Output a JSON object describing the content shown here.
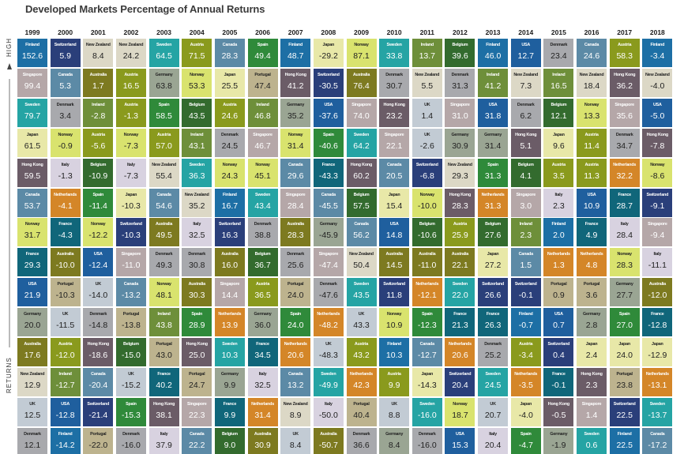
{
  "chart_data": {
    "type": "table",
    "title": "Developed Markets Percentage of Annual Returns",
    "side_labels": {
      "top": "HIGH",
      "bottom": "RETURNS"
    },
    "years": [
      "1999",
      "2000",
      "2001",
      "2002",
      "2003",
      "2004",
      "2005",
      "2006",
      "2007",
      "2008",
      "2009",
      "2010",
      "2011",
      "2012",
      "2013",
      "2014",
      "2015",
      "2016",
      "2017",
      "2018"
    ],
    "colors": {
      "Finland": "#1d6fa5",
      "Switzerland": "#2a3f7a",
      "New Zealand": "#dcd8c6",
      "Sweden": "#25a4a4",
      "Austria": "#8a9a1d",
      "Canada": "#5c8aa6",
      "Spain": "#2f8a3a",
      "Japan": "#e8e8a8",
      "Norway": "#d9e36e",
      "Ireland": "#6e8f3a",
      "Belgium": "#336b2e",
      "USA": "#1f5f9e",
      "Singapore": "#b5a7a8",
      "Germany": "#9aa593",
      "Portugal": "#bdb38e",
      "Hong Kong": "#6b5c67",
      "Australia": "#7d7a20",
      "Denmark": "#a8a9ad",
      "Italy": "#d8d2e0",
      "Netherlands": "#d48628",
      "France": "#10667a",
      "UK": "#c2cbd4"
    },
    "light_text_countries": [
      "Finland",
      "Switzerland",
      "Sweden",
      "Austria",
      "Canada",
      "Spain",
      "Ireland",
      "Belgium",
      "USA",
      "Singapore",
      "Hong Kong",
      "Australia",
      "Netherlands",
      "France"
    ],
    "columns": [
      [
        [
          "Finland",
          "152.6"
        ],
        [
          "Singapore",
          "99.4"
        ],
        [
          "Sweden",
          "79.7"
        ],
        [
          "Japan",
          "61.5"
        ],
        [
          "Hong Kong",
          "59.5"
        ],
        [
          "Canada",
          "53.7"
        ],
        [
          "Norway",
          "31.7"
        ],
        [
          "France",
          "29.3"
        ],
        [
          "USA",
          "21.9"
        ],
        [
          "Germany",
          "20.0"
        ],
        [
          "Australia",
          "17.6"
        ],
        [
          "New Zealand",
          "12.9"
        ],
        [
          "UK",
          "12.5"
        ],
        [
          "Denmark",
          "12.1"
        ]
      ],
      [
        [
          "Switzerland",
          "5.9"
        ],
        [
          "Canada",
          "5.3"
        ],
        [
          "Denmark",
          "3.4"
        ],
        [
          "Norway",
          "-0.9"
        ],
        [
          "Italy",
          "-1.3"
        ],
        [
          "Netherlands",
          "-4.1"
        ],
        [
          "France",
          "-4.3"
        ],
        [
          "Australia",
          "-10.0"
        ],
        [
          "Portugal",
          "-10.3"
        ],
        [
          "UK",
          "-11.5"
        ],
        [
          "Austria",
          "-12.0"
        ],
        [
          "Ireland",
          "-12.7"
        ],
        [
          "USA",
          "-12.8"
        ],
        [
          "Finland",
          "-14.2"
        ]
      ],
      [
        [
          "New Zealand",
          "8.4"
        ],
        [
          "Australia",
          "1.7"
        ],
        [
          "Ireland",
          "-2.8"
        ],
        [
          "Austria",
          "-5.6"
        ],
        [
          "Belgium",
          "-10.9"
        ],
        [
          "Spain",
          "-11.4"
        ],
        [
          "Norway",
          "-12.2"
        ],
        [
          "USA",
          "-12.4"
        ],
        [
          "UK",
          "-14.0"
        ],
        [
          "Denmark",
          "-14.8"
        ],
        [
          "Hong Kong",
          "-18.6"
        ],
        [
          "Canada",
          "-20.4"
        ],
        [
          "Switzerland",
          "-21.4"
        ],
        [
          "Portugal",
          "-22.0"
        ]
      ],
      [
        [
          "New Zealand",
          "24.2"
        ],
        [
          "Austria",
          "16.5"
        ],
        [
          "Austria",
          "-1.3"
        ],
        [
          "Norway",
          "-7.3"
        ],
        [
          "Italy",
          "-7.3"
        ],
        [
          "Japan",
          "-10.3"
        ],
        [
          "Switzerland",
          "-10.3"
        ],
        [
          "Singapore",
          "-11.0"
        ],
        [
          "Canada",
          "-13.2"
        ],
        [
          "Portugal",
          "-13.8"
        ],
        [
          "Belgium",
          "-15.0"
        ],
        [
          "UK",
          "-15.2"
        ],
        [
          "Spain",
          "-15.3"
        ],
        [
          "Denmark",
          "-16.0"
        ]
      ],
      [
        [
          "Sweden",
          "64.5"
        ],
        [
          "Germany",
          "63.8"
        ],
        [
          "Spain",
          "58.5"
        ],
        [
          "Austria",
          "57.0"
        ],
        [
          "New Zealand",
          "55.4"
        ],
        [
          "Canada",
          "54.6"
        ],
        [
          "Australia",
          "49.5"
        ],
        [
          "Denmark",
          "49.3"
        ],
        [
          "Norway",
          "48.1"
        ],
        [
          "Ireland",
          "43.8"
        ],
        [
          "Portugal",
          "43.0"
        ],
        [
          "France",
          "40.2"
        ],
        [
          "Hong Kong",
          "38.1"
        ],
        [
          "Italy",
          "37.9"
        ]
      ],
      [
        [
          "Austria",
          "71.5"
        ],
        [
          "Norway",
          "53.3"
        ],
        [
          "Belgium",
          "43.5"
        ],
        [
          "Ireland",
          "43.1"
        ],
        [
          "Sweden",
          "36.3"
        ],
        [
          "New Zealand",
          "35.2"
        ],
        [
          "Italy",
          "32.5"
        ],
        [
          "Denmark",
          "30.8"
        ],
        [
          "Australia",
          "30.3"
        ],
        [
          "Spain",
          "28.9"
        ],
        [
          "Hong Kong",
          "25.0"
        ],
        [
          "Portugal",
          "24.7"
        ],
        [
          "Singapore",
          "22.3"
        ],
        [
          "Canada",
          "22.2"
        ]
      ],
      [
        [
          "Canada",
          "28.3"
        ],
        [
          "Japan",
          "25.5"
        ],
        [
          "Austria",
          "24.6"
        ],
        [
          "Denmark",
          "24.5"
        ],
        [
          "Norway",
          "24.3"
        ],
        [
          "Finland",
          "16.7"
        ],
        [
          "Switzerland",
          "16.3"
        ],
        [
          "Australia",
          "16.0"
        ],
        [
          "Singapore",
          "14.4"
        ],
        [
          "Netherlands",
          "13.9"
        ],
        [
          "Sweden",
          "10.3"
        ],
        [
          "Germany",
          "9.9"
        ],
        [
          "France",
          "9.9"
        ],
        [
          "Belgium",
          "9.0"
        ]
      ],
      [
        [
          "Spain",
          "49.4"
        ],
        [
          "Portugal",
          "47.4"
        ],
        [
          "Ireland",
          "46.8"
        ],
        [
          "Singapore",
          "46.7"
        ],
        [
          "Norway",
          "45.1"
        ],
        [
          "Sweden",
          "43.4"
        ],
        [
          "Denmark",
          "38.8"
        ],
        [
          "Belgium",
          "36.7"
        ],
        [
          "Austria",
          "36.5"
        ],
        [
          "Germany",
          "36.0"
        ],
        [
          "France",
          "34.5"
        ],
        [
          "Italy",
          "32.5"
        ],
        [
          "Netherlands",
          "31.4"
        ],
        [
          "Australia",
          "30.9"
        ]
      ],
      [
        [
          "Finland",
          "48.7"
        ],
        [
          "Hong Kong",
          "41.2"
        ],
        [
          "Germany",
          "35.2"
        ],
        [
          "Norway",
          "31.4"
        ],
        [
          "Canada",
          "29.6"
        ],
        [
          "Singapore",
          "28.4"
        ],
        [
          "Australia",
          "28.3"
        ],
        [
          "Denmark",
          "25.6"
        ],
        [
          "Portugal",
          "24.0"
        ],
        [
          "Spain",
          "24.0"
        ],
        [
          "Netherlands",
          "20.6"
        ],
        [
          "Canada",
          "13.2"
        ],
        [
          "New Zealand",
          "8.9"
        ],
        [
          "UK",
          "8.4"
        ]
      ],
      [
        [
          "Japan",
          "-29.2"
        ],
        [
          "Switzerland",
          "-30.5"
        ],
        [
          "USA",
          "-37.6"
        ],
        [
          "Spain",
          "-40.6"
        ],
        [
          "France",
          "-43.3"
        ],
        [
          "Canada",
          "-45.5"
        ],
        [
          "Germany",
          "-45.9"
        ],
        [
          "Singapore",
          "-47.4"
        ],
        [
          "Denmark",
          "-47.6"
        ],
        [
          "Netherlands",
          "-48.2"
        ],
        [
          "UK",
          "-48.3"
        ],
        [
          "Sweden",
          "-49.9"
        ],
        [
          "Italy",
          "-50.0"
        ],
        [
          "Australia",
          "-50.7"
        ]
      ],
      [
        [
          "Norway",
          "87.1"
        ],
        [
          "Australia",
          "76.4"
        ],
        [
          "Singapore",
          "74.0"
        ],
        [
          "Sweden",
          "64.2"
        ],
        [
          "Hong Kong",
          "60.2"
        ],
        [
          "Belgium",
          "57.5"
        ],
        [
          "Canada",
          "56.2"
        ],
        [
          "New Zealand",
          "50.4"
        ],
        [
          "Sweden",
          "43.5"
        ],
        [
          "UK",
          "43.3"
        ],
        [
          "Austria",
          "43.2"
        ],
        [
          "Netherlands",
          "42.3"
        ],
        [
          "Portugal",
          "40.4"
        ],
        [
          "Denmark",
          "36.6"
        ]
      ],
      [
        [
          "Sweden",
          "33.8"
        ],
        [
          "Denmark",
          "30.7"
        ],
        [
          "Hong Kong",
          "23.2"
        ],
        [
          "Singapore",
          "22.1"
        ],
        [
          "Canada",
          "20.5"
        ],
        [
          "Japan",
          "15.4"
        ],
        [
          "USA",
          "14.8"
        ],
        [
          "Australia",
          "14.5"
        ],
        [
          "Switzerland",
          "11.8"
        ],
        [
          "Norway",
          "10.9"
        ],
        [
          "Finland",
          "10.3"
        ],
        [
          "Austria",
          "9.9"
        ],
        [
          "UK",
          "8.8"
        ],
        [
          "Germany",
          "8.4"
        ]
      ],
      [
        [
          "Ireland",
          "13.7"
        ],
        [
          "New Zealand",
          "5.5"
        ],
        [
          "UK",
          "1.4"
        ],
        [
          "UK",
          "-2.6"
        ],
        [
          "Switzerland",
          "-6.8"
        ],
        [
          "Norway",
          "-10.0"
        ],
        [
          "Belgium",
          "-10.6"
        ],
        [
          "Australia",
          "-11.0"
        ],
        [
          "Netherlands",
          "-12.1"
        ],
        [
          "Spain",
          "-12.3"
        ],
        [
          "Canada",
          "-12.7"
        ],
        [
          "Japan",
          "-14.3"
        ],
        [
          "Sweden",
          "-16.0"
        ],
        [
          "Denmark",
          "-16.0"
        ]
      ],
      [
        [
          "Belgium",
          "39.6"
        ],
        [
          "Denmark",
          "31.3"
        ],
        [
          "Singapore",
          "31.0"
        ],
        [
          "Germany",
          "30.9"
        ],
        [
          "New Zealand",
          "29.3"
        ],
        [
          "Hong Kong",
          "28.3"
        ],
        [
          "Austria",
          "25.9"
        ],
        [
          "Australia",
          "22.1"
        ],
        [
          "Sweden",
          "22.0"
        ],
        [
          "France",
          "21.3"
        ],
        [
          "Netherlands",
          "20.6"
        ],
        [
          "Switzerland",
          "20.4"
        ],
        [
          "Norway",
          "18.7"
        ],
        [
          "USA",
          "15.3"
        ]
      ],
      [
        [
          "Finland",
          "46.0"
        ],
        [
          "Ireland",
          "41.2"
        ],
        [
          "USA",
          "31.8"
        ],
        [
          "Germany",
          "31.4"
        ],
        [
          "Spain",
          "31.3"
        ],
        [
          "Netherlands",
          "31.3"
        ],
        [
          "Belgium",
          "27.6"
        ],
        [
          "Japan",
          "27.2"
        ],
        [
          "Switzerland",
          "26.6"
        ],
        [
          "France",
          "26.3"
        ],
        [
          "Denmark",
          "25.2"
        ],
        [
          "Sweden",
          "24.5"
        ],
        [
          "UK",
          "20.7"
        ],
        [
          "Italy",
          "20.4"
        ]
      ],
      [
        [
          "USA",
          "12.7"
        ],
        [
          "New Zealand",
          "7.3"
        ],
        [
          "Denmark",
          "6.2"
        ],
        [
          "Hong Kong",
          "5.1"
        ],
        [
          "Belgium",
          "4.1"
        ],
        [
          "Singapore",
          "3.0"
        ],
        [
          "Ireland",
          "2.3"
        ],
        [
          "Canada",
          "1.5"
        ],
        [
          "Switzerland",
          "-0.1"
        ],
        [
          "Finland",
          "-0.7"
        ],
        [
          "Austria",
          "-3.4"
        ],
        [
          "Netherlands",
          "-3.5"
        ],
        [
          "Japan",
          "-4.0"
        ],
        [
          "Spain",
          "-4.7"
        ]
      ],
      [
        [
          "Denmark",
          "23.4"
        ],
        [
          "Ireland",
          "16.5"
        ],
        [
          "Belgium",
          "12.1"
        ],
        [
          "Japan",
          "9.6"
        ],
        [
          "Austria",
          "3.5"
        ],
        [
          "Italy",
          "2.3"
        ],
        [
          "Finland",
          "2.0"
        ],
        [
          "Netherlands",
          "1.3"
        ],
        [
          "Portugal",
          "0.9"
        ],
        [
          "USA",
          "0.7"
        ],
        [
          "Switzerland",
          "0.4"
        ],
        [
          "France",
          "-0.1"
        ],
        [
          "Hong Kong",
          "-0.5"
        ],
        [
          "Germany",
          "-1.9"
        ]
      ],
      [
        [
          "Canada",
          "24.6"
        ],
        [
          "New Zealand",
          "18.4"
        ],
        [
          "Norway",
          "13.3"
        ],
        [
          "Austria",
          "11.4"
        ],
        [
          "Austria",
          "11.3"
        ],
        [
          "USA",
          "10.9"
        ],
        [
          "France",
          "4.9"
        ],
        [
          "Netherlands",
          "4.8"
        ],
        [
          "Portugal",
          "3.6"
        ],
        [
          "Germany",
          "2.8"
        ],
        [
          "Japan",
          "2.4"
        ],
        [
          "Hong Kong",
          "2.3"
        ],
        [
          "Singapore",
          "1.4"
        ],
        [
          "Sweden",
          "0.6"
        ]
      ],
      [
        [
          "Austria",
          "58.3"
        ],
        [
          "Hong Kong",
          "36.2"
        ],
        [
          "Singapore",
          "35.6"
        ],
        [
          "Denmark",
          "34.7"
        ],
        [
          "Netherlands",
          "32.2"
        ],
        [
          "France",
          "28.7"
        ],
        [
          "Italy",
          "28.4"
        ],
        [
          "Norway",
          "28.3"
        ],
        [
          "Germany",
          "27.7"
        ],
        [
          "Spain",
          "27.0"
        ],
        [
          "Japan",
          "24.0"
        ],
        [
          "Portugal",
          "23.8"
        ],
        [
          "Switzerland",
          "22.5"
        ],
        [
          "Finland",
          "22.5"
        ]
      ],
      [
        [
          "Finland",
          "-3.4"
        ],
        [
          "New Zealand",
          "-4.0"
        ],
        [
          "USA",
          "-5.0"
        ],
        [
          "Hong Kong",
          "-7.8"
        ],
        [
          "Norway",
          "-8.6"
        ],
        [
          "Switzerland",
          "-9.1"
        ],
        [
          "Singapore",
          "-9.4"
        ],
        [
          "Italy",
          "-11.1"
        ],
        [
          "Australia",
          "-12.0"
        ],
        [
          "France",
          "-12.8"
        ],
        [
          "Japan",
          "-12.9"
        ],
        [
          "Netherlands",
          "-13.1"
        ],
        [
          "Sweden",
          "-13.7"
        ],
        [
          "Canada",
          "-17.2"
        ]
      ]
    ]
  }
}
